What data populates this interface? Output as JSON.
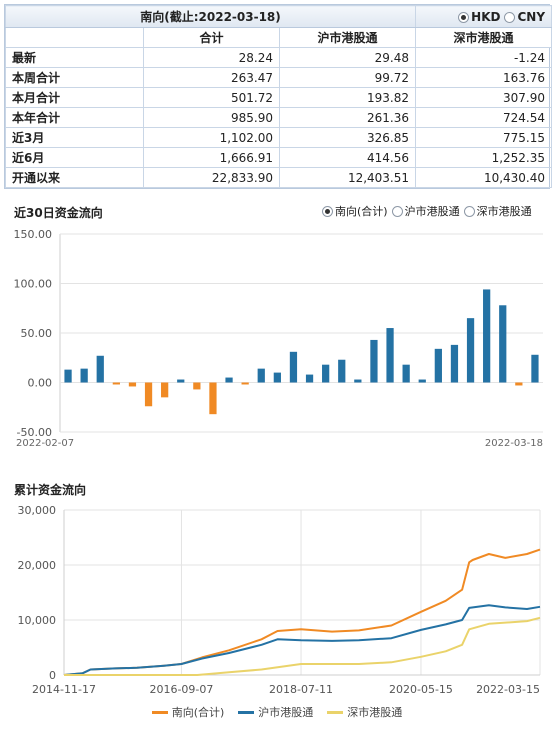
{
  "summary": {
    "title": "南向(截止:2022-03-18)",
    "currency_options": [
      {
        "label": "HKD",
        "selected": true
      },
      {
        "label": "CNY",
        "selected": false
      }
    ],
    "columns": [
      "合计",
      "沪市港股通",
      "深市港股通"
    ],
    "rows": [
      {
        "label": "最新",
        "values": [
          "28.24",
          "29.48",
          "-1.24"
        ]
      },
      {
        "label": "本周合计",
        "values": [
          "263.47",
          "99.72",
          "163.76"
        ]
      },
      {
        "label": "本月合计",
        "values": [
          "501.72",
          "193.82",
          "307.90"
        ]
      },
      {
        "label": "本年合计",
        "values": [
          "985.90",
          "261.36",
          "724.54"
        ]
      },
      {
        "label": "近3月",
        "values": [
          "1,102.00",
          "326.85",
          "775.15"
        ]
      },
      {
        "label": "近6月",
        "values": [
          "1,666.91",
          "414.56",
          "1,252.35"
        ]
      },
      {
        "label": "开通以来",
        "values": [
          "22,833.90",
          "12,403.51",
          "10,430.40"
        ]
      }
    ]
  },
  "daily_chart": {
    "title": "近30日资金流向",
    "options": [
      {
        "label": "南向(合计)",
        "selected": true
      },
      {
        "label": "沪市港股通",
        "selected": false
      },
      {
        "label": "深市港股通",
        "selected": false
      }
    ]
  },
  "cumulative_chart": {
    "title": "累计资金流向"
  },
  "colors": {
    "positive_bar": "#2472a4",
    "negative_bar": "#f08a24",
    "south_total": "#f08a24",
    "shanghai": "#2472a4",
    "shenzhen": "#ead36a",
    "grid": "#e3e3e3"
  },
  "chart_data": [
    {
      "type": "bar",
      "title": "近30日资金流向",
      "ylim": [
        -50,
        150
      ],
      "yticks": [
        "150.00",
        "100.00",
        "50.00",
        "0.00",
        "-50.00"
      ],
      "ytick_values": [
        150,
        100,
        50,
        0,
        -50
      ],
      "xtick_labels": [
        "2022-02-07",
        "2022-03-18"
      ],
      "values": [
        13,
        14,
        27,
        -2,
        -4,
        -24,
        -15,
        3,
        -7,
        -32,
        5,
        -2,
        14,
        10,
        31,
        8,
        18,
        23,
        3,
        43,
        55,
        18,
        3,
        34,
        38,
        65,
        94,
        78,
        -3,
        28
      ],
      "grid": true
    },
    {
      "type": "line",
      "title": "累计资金流向",
      "ylim": [
        0,
        30000
      ],
      "yticks": [
        "30,000",
        "20,000",
        "10,000",
        "0"
      ],
      "ytick_values": [
        30000,
        20000,
        10000,
        0
      ],
      "xlim": [
        "2014-11-17",
        "2022-03-15"
      ],
      "xtick_labels": [
        "2014-11-17",
        "2016-09-07",
        "2018-07-11",
        "2020-05-15",
        "2022-03-15"
      ],
      "grid": true,
      "series": [
        {
          "name": "南向(合计)",
          "color_key": "south_total",
          "points": [
            [
              "2014-11-17",
              0
            ],
            [
              "2015-03-01",
              300
            ],
            [
              "2015-04-15",
              1000
            ],
            [
              "2015-09-01",
              1200
            ],
            [
              "2016-01-01",
              1300
            ],
            [
              "2016-06-01",
              1700
            ],
            [
              "2016-09-07",
              2000
            ],
            [
              "2017-01-01",
              3200
            ],
            [
              "2017-06-01",
              4500
            ],
            [
              "2017-12-01",
              6500
            ],
            [
              "2018-03-01",
              8000
            ],
            [
              "2018-07-11",
              8300
            ],
            [
              "2019-01-01",
              7900
            ],
            [
              "2019-06-01",
              8100
            ],
            [
              "2019-12-01",
              9000
            ],
            [
              "2020-05-15",
              11500
            ],
            [
              "2020-10-01",
              13500
            ],
            [
              "2021-01-01",
              15500
            ],
            [
              "2021-02-10",
              20500
            ],
            [
              "2021-03-01",
              20900
            ],
            [
              "2021-06-01",
              22000
            ],
            [
              "2021-09-01",
              21300
            ],
            [
              "2022-01-01",
              22000
            ],
            [
              "2022-03-15",
              22800
            ]
          ]
        },
        {
          "name": "沪市港股通",
          "color_key": "shanghai",
          "points": [
            [
              "2014-11-17",
              0
            ],
            [
              "2015-03-01",
              300
            ],
            [
              "2015-04-15",
              1000
            ],
            [
              "2015-09-01",
              1200
            ],
            [
              "2016-01-01",
              1300
            ],
            [
              "2016-06-01",
              1700
            ],
            [
              "2016-09-07",
              2000
            ],
            [
              "2017-01-01",
              3000
            ],
            [
              "2017-06-01",
              4000
            ],
            [
              "2017-12-01",
              5500
            ],
            [
              "2018-03-01",
              6500
            ],
            [
              "2018-07-11",
              6300
            ],
            [
              "2019-01-01",
              6200
            ],
            [
              "2019-06-01",
              6300
            ],
            [
              "2019-12-01",
              6700
            ],
            [
              "2020-05-15",
              8200
            ],
            [
              "2020-10-01",
              9200
            ],
            [
              "2021-01-01",
              10000
            ],
            [
              "2021-02-10",
              12200
            ],
            [
              "2021-06-01",
              12700
            ],
            [
              "2021-09-01",
              12300
            ],
            [
              "2022-01-01",
              12000
            ],
            [
              "2022-03-15",
              12400
            ]
          ]
        },
        {
          "name": "深市港股通",
          "color_key": "shenzhen",
          "points": [
            [
              "2014-11-17",
              0
            ],
            [
              "2016-12-05",
              0
            ],
            [
              "2017-06-01",
              500
            ],
            [
              "2017-12-01",
              1000
            ],
            [
              "2018-07-11",
              2000
            ],
            [
              "2019-06-01",
              2000
            ],
            [
              "2019-12-01",
              2300
            ],
            [
              "2020-05-15",
              3300
            ],
            [
              "2020-10-01",
              4300
            ],
            [
              "2021-01-01",
              5500
            ],
            [
              "2021-02-10",
              8300
            ],
            [
              "2021-06-01",
              9300
            ],
            [
              "2022-01-01",
              9800
            ],
            [
              "2022-03-15",
              10400
            ]
          ]
        }
      ]
    }
  ]
}
